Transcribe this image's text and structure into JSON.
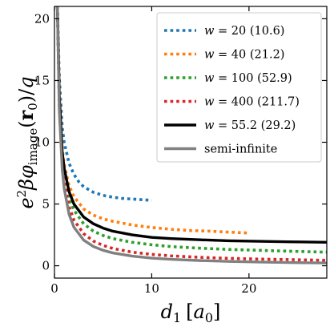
{
  "chart_data": {
    "type": "line",
    "title": "",
    "xlabel": "d_1 [a_0]",
    "ylabel": "e^2 βφ_image(r_0)/q",
    "xlabel_parts": {
      "var": "d",
      "sub": "1",
      "bracket_open": "[",
      "unit": "a",
      "unit_sub": "0",
      "bracket_close": "]"
    },
    "ylabel_parts": {
      "pre": "e",
      "sup": "2",
      "beta": "β",
      "phi": "φ",
      "sub": "image",
      "open": "(",
      "r": "r",
      "r_sub": "0",
      "close": ")",
      "slash": "/",
      "q": "q"
    },
    "xlim": [
      0,
      28
    ],
    "ylim": [
      -1,
      21
    ],
    "xticks": [
      "0",
      "10",
      "20"
    ],
    "yticks": [
      "0",
      "5",
      "10",
      "15",
      "20"
    ],
    "xtick_values": [
      0,
      10,
      20
    ],
    "ytick_values": [
      0,
      5,
      10,
      15,
      20
    ],
    "grid": false,
    "legend_placement": "top-right",
    "series": [
      {
        "name": "w = 20 (10.6)",
        "w": "20",
        "paren": "(10.6)",
        "style": "dotted",
        "color": "#1f77b4",
        "x": [
          0.3,
          0.5,
          0.8,
          1.0,
          1.5,
          2.0,
          2.5,
          3.0,
          4.0,
          5.0,
          6.0,
          7.0,
          8.0,
          9.0,
          10.0
        ],
        "y": [
          21.0,
          15.2,
          11.2,
          10.0,
          8.3,
          7.4,
          6.8,
          6.4,
          5.95,
          5.7,
          5.55,
          5.45,
          5.4,
          5.35,
          5.3
        ]
      },
      {
        "name": "w = 40 (21.2)",
        "w": "40",
        "paren": "(21.2)",
        "style": "dotted",
        "color": "#ff7f0e",
        "x": [
          0.3,
          0.5,
          0.8,
          1.0,
          1.5,
          2.0,
          3.0,
          4.0,
          5.0,
          6.0,
          8.0,
          10.0,
          12.0,
          14.0,
          16.0,
          18.0,
          20.0
        ],
        "y": [
          21.0,
          14.0,
          9.5,
          8.2,
          6.5,
          5.6,
          4.6,
          4.1,
          3.8,
          3.6,
          3.3,
          3.1,
          2.95,
          2.85,
          2.8,
          2.72,
          2.65
        ]
      },
      {
        "name": "w = 100 (52.9)",
        "w": "100",
        "paren": "(52.9)",
        "style": "dotted",
        "color": "#2ca02c",
        "x": [
          0.3,
          0.5,
          0.8,
          1.0,
          1.5,
          2.0,
          3.0,
          4.0,
          5.0,
          6.0,
          8.0,
          10.0,
          12.0,
          15.0,
          18.0,
          21.0,
          24.0,
          28.0
        ],
        "y": [
          21.0,
          13.4,
          8.8,
          7.4,
          5.5,
          4.5,
          3.4,
          2.8,
          2.45,
          2.2,
          1.9,
          1.7,
          1.55,
          1.42,
          1.32,
          1.25,
          1.18,
          1.1
        ]
      },
      {
        "name": "w = 400 (211.7)",
        "w": "400",
        "paren": "(211.7)",
        "style": "dotted",
        "color": "#d62728",
        "x": [
          0.3,
          0.5,
          0.8,
          1.0,
          1.5,
          2.0,
          3.0,
          4.0,
          5.0,
          6.0,
          8.0,
          10.0,
          12.0,
          15.0,
          18.0,
          21.0,
          24.0,
          28.0
        ],
        "y": [
          21.0,
          13.0,
          8.3,
          6.8,
          4.8,
          3.7,
          2.6,
          2.0,
          1.65,
          1.4,
          1.1,
          0.92,
          0.8,
          0.68,
          0.6,
          0.54,
          0.5,
          0.44
        ]
      },
      {
        "name": "w = 55.2 (29.2)",
        "w": "55.2",
        "paren": "(29.2)",
        "style": "solid",
        "color": "#000000",
        "x": [
          0.3,
          0.5,
          0.8,
          1.0,
          1.5,
          2.0,
          3.0,
          4.0,
          5.0,
          6.0,
          8.0,
          10.0,
          12.0,
          15.0,
          18.0,
          21.0,
          24.0,
          28.0
        ],
        "y": [
          21.0,
          13.8,
          9.2,
          7.9,
          6.0,
          5.0,
          3.95,
          3.4,
          3.05,
          2.8,
          2.5,
          2.3,
          2.2,
          2.1,
          2.02,
          1.98,
          1.94,
          1.9
        ]
      },
      {
        "name": "semi-infinite",
        "style": "solid",
        "color": "#808080",
        "x": [
          0.3,
          0.5,
          0.8,
          1.0,
          1.5,
          2.0,
          3.0,
          4.0,
          5.0,
          6.0,
          8.0,
          10.0,
          12.0,
          15.0,
          18.0,
          21.0,
          24.0,
          28.0
        ],
        "y": [
          21.0,
          12.5,
          7.8,
          6.25,
          4.17,
          3.12,
          2.08,
          1.56,
          1.25,
          1.04,
          0.78,
          0.62,
          0.52,
          0.42,
          0.35,
          0.3,
          0.26,
          0.22
        ]
      }
    ]
  }
}
